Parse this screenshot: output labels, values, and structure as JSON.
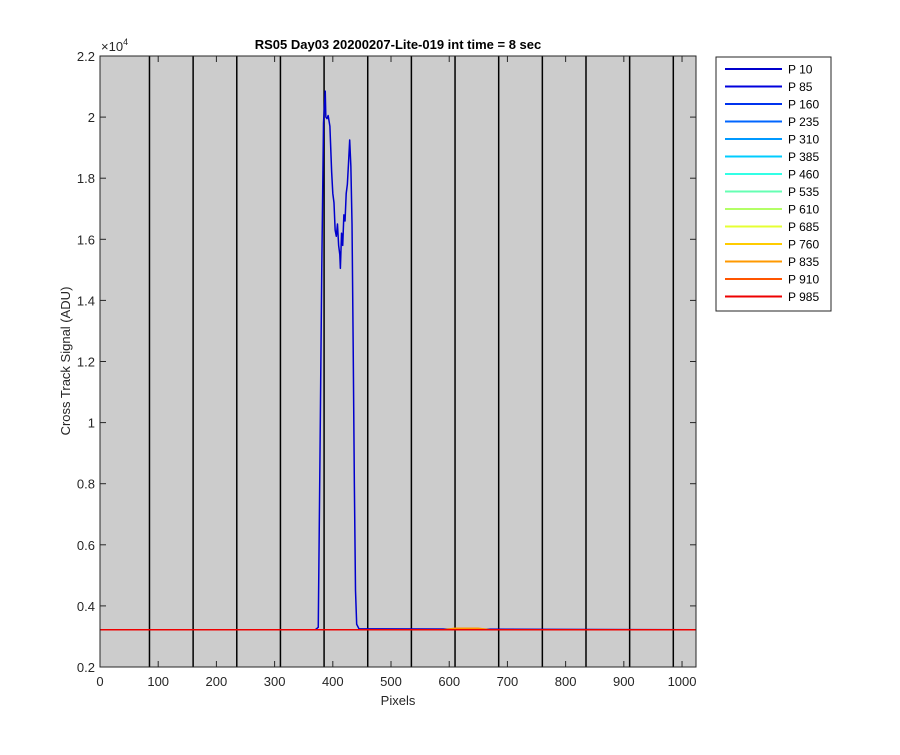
{
  "chart_data": {
    "type": "line",
    "title": "RS05 Day03 20200207-Lite-019 int time = 8 sec",
    "xlabel": "Pixels",
    "ylabel": "Cross Track Signal (ADU)",
    "xlim": [
      0,
      1024
    ],
    "ylim": [
      2000,
      22000
    ],
    "y_exponent_label": "×10",
    "y_exponent_power": "4",
    "x_ticks": [
      0,
      100,
      200,
      300,
      400,
      500,
      600,
      700,
      800,
      900,
      1000
    ],
    "x_tick_labels": [
      "0",
      "100",
      "200",
      "300",
      "400",
      "500",
      "600",
      "700",
      "800",
      "900",
      "1000"
    ],
    "y_ticks": [
      2000,
      4000,
      6000,
      8000,
      10000,
      12000,
      14000,
      16000,
      18000,
      20000,
      22000
    ],
    "y_tick_labels": [
      "0.2",
      "0.4",
      "0.6",
      "0.8",
      "1",
      "1.2",
      "1.4",
      "1.6",
      "1.8",
      "2",
      "2.2"
    ],
    "vertical_lines_x": [
      85,
      160,
      235,
      310,
      385,
      460,
      535,
      610,
      685,
      760,
      835,
      910,
      985
    ],
    "background_color": "#cccccc",
    "grid": false,
    "legend_position": "outside-top-right",
    "series": [
      {
        "name": "P 10",
        "color": "#0000cc",
        "values": [
          [
            0,
            3220
          ],
          [
            370,
            3220
          ],
          [
            375,
            3300
          ],
          [
            378,
            9000
          ],
          [
            381,
            15000
          ],
          [
            384,
            19800
          ],
          [
            386,
            20500
          ],
          [
            387,
            20850
          ],
          [
            388,
            20000
          ],
          [
            390,
            19950
          ],
          [
            392,
            20050
          ],
          [
            395,
            19700
          ],
          [
            398,
            18200
          ],
          [
            400,
            17500
          ],
          [
            402,
            17200
          ],
          [
            404,
            16300
          ],
          [
            406,
            16100
          ],
          [
            408,
            16500
          ],
          [
            410,
            15800
          ],
          [
            412,
            15500
          ],
          [
            413,
            15050
          ],
          [
            415,
            16200
          ],
          [
            417,
            15800
          ],
          [
            419,
            16800
          ],
          [
            421,
            16600
          ],
          [
            423,
            17500
          ],
          [
            425,
            17800
          ],
          [
            427,
            18500
          ],
          [
            429,
            19250
          ],
          [
            431,
            18400
          ],
          [
            433,
            16500
          ],
          [
            435,
            12500
          ],
          [
            437,
            8000
          ],
          [
            439,
            4500
          ],
          [
            441,
            3400
          ],
          [
            445,
            3250
          ],
          [
            1024,
            3220
          ]
        ]
      },
      {
        "name": "P 85",
        "color": "#0000dd",
        "values": [
          [
            0,
            3220
          ],
          [
            1024,
            3220
          ]
        ]
      },
      {
        "name": "P 160",
        "color": "#0033ee",
        "values": [
          [
            0,
            3220
          ],
          [
            1024,
            3220
          ]
        ]
      },
      {
        "name": "P 235",
        "color": "#0066ff",
        "values": [
          [
            0,
            3220
          ],
          [
            1024,
            3220
          ]
        ]
      },
      {
        "name": "P 310",
        "color": "#0099ff",
        "values": [
          [
            0,
            3220
          ],
          [
            1024,
            3220
          ]
        ]
      },
      {
        "name": "P 385",
        "color": "#00ccff",
        "values": [
          [
            0,
            3220
          ],
          [
            1024,
            3220
          ]
        ]
      },
      {
        "name": "P 460",
        "color": "#33ffe6",
        "values": [
          [
            0,
            3220
          ],
          [
            1024,
            3220
          ]
        ]
      },
      {
        "name": "P 535",
        "color": "#66ffb3",
        "values": [
          [
            0,
            3220
          ],
          [
            1024,
            3220
          ]
        ]
      },
      {
        "name": "P 610",
        "color": "#b3ff66",
        "values": [
          [
            0,
            3220
          ],
          [
            1024,
            3220
          ]
        ]
      },
      {
        "name": "P 685",
        "color": "#e6ff33",
        "values": [
          [
            0,
            3220
          ],
          [
            1024,
            3220
          ]
        ]
      },
      {
        "name": "P 760",
        "color": "#ffcc00",
        "values": [
          [
            0,
            3220
          ],
          [
            1024,
            3220
          ]
        ]
      },
      {
        "name": "P 835",
        "color": "#ff9900",
        "values": [
          [
            0,
            3220
          ],
          [
            590,
            3220
          ],
          [
            610,
            3270
          ],
          [
            650,
            3270
          ],
          [
            670,
            3220
          ],
          [
            1024,
            3220
          ]
        ]
      },
      {
        "name": "P 910",
        "color": "#ff5500",
        "values": [
          [
            0,
            3220
          ],
          [
            1024,
            3220
          ]
        ]
      },
      {
        "name": "P 985",
        "color": "#ee0000",
        "values": [
          [
            0,
            3220
          ],
          [
            1024,
            3220
          ]
        ]
      }
    ]
  }
}
